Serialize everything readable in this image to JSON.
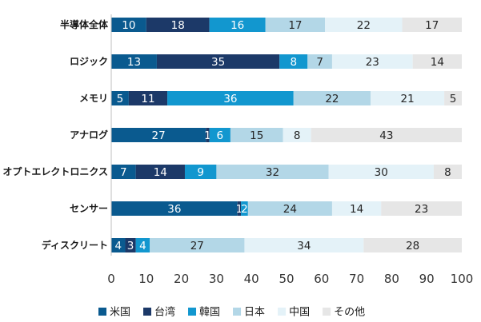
{
  "chart_data": {
    "type": "bar",
    "orientation": "horizontal",
    "stacked": true,
    "categories": [
      "半導体全体",
      "ロジック",
      "メモリ",
      "アナログ",
      "オプトエレクトロニクス",
      "センサー",
      "ディスクリート"
    ],
    "series": [
      {
        "name": "米国",
        "color": "#0a5a8f",
        "values": [
          10,
          13,
          5,
          27,
          7,
          36,
          4
        ]
      },
      {
        "name": "台湾",
        "color": "#1c3968",
        "values": [
          18,
          35,
          11,
          1,
          14,
          1,
          3
        ]
      },
      {
        "name": "韓国",
        "color": "#1297cf",
        "values": [
          16,
          8,
          36,
          6,
          9,
          2,
          4
        ]
      },
      {
        "name": "日本",
        "color": "#b3d7e7",
        "values": [
          17,
          7,
          22,
          15,
          32,
          24,
          27
        ]
      },
      {
        "name": "中国",
        "color": "#e4f2f8",
        "values": [
          22,
          23,
          21,
          8,
          30,
          14,
          34
        ]
      },
      {
        "name": "その他",
        "color": "#e6e6e6",
        "values": [
          17,
          14,
          5,
          43,
          8,
          23,
          28
        ]
      }
    ],
    "xlim": [
      0,
      100
    ],
    "xticks": [
      0,
      10,
      20,
      30,
      40,
      50,
      60,
      70,
      80,
      90,
      100
    ],
    "legend_position": "bottom",
    "grid": false
  }
}
